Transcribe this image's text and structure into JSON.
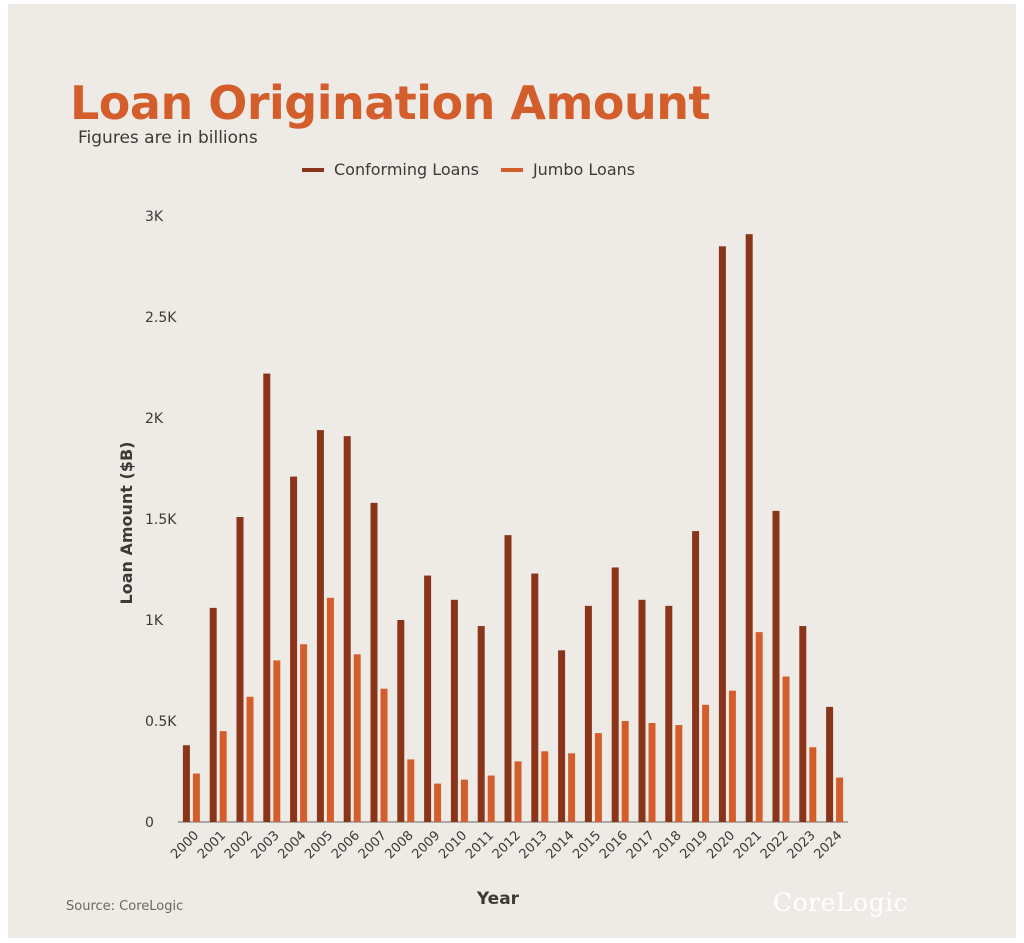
{
  "title": "Loan Origination Amount",
  "subtitle": "Figures are in billions",
  "source": "Source: CoreLogic",
  "brand": "CoreLogic",
  "colors": {
    "conforming": "#8a3419",
    "jumbo": "#d35e2c",
    "background": "#eeebe6",
    "text": "#3d3935",
    "axis": "#6d6760"
  },
  "chart_data": {
    "type": "bar",
    "xlabel": "Year",
    "ylabel": "Loan Amount ($B)",
    "ylim": [
      0,
      3000
    ],
    "yticks": [
      0,
      500,
      1000,
      1500,
      2000,
      2500,
      3000
    ],
    "ytick_labels": [
      "0",
      "0.5K",
      "1K",
      "1.5K",
      "2K",
      "2.5K",
      "3K"
    ],
    "grid": false,
    "legend_position": "top-center",
    "categories": [
      "2000",
      "2001",
      "2002",
      "2003",
      "2004",
      "2005",
      "2006",
      "2007",
      "2008",
      "2009",
      "2010",
      "2011",
      "2012",
      "2013",
      "2014",
      "2015",
      "2016",
      "2017",
      "2018",
      "2019",
      "2020",
      "2021",
      "2022",
      "2023",
      "2024"
    ],
    "series": [
      {
        "name": "Conforming Loans",
        "color": "#8a3419",
        "values": [
          380,
          1060,
          1510,
          2220,
          1710,
          1940,
          1910,
          1580,
          1000,
          1220,
          1100,
          970,
          1420,
          1230,
          850,
          1070,
          1260,
          1100,
          1070,
          1440,
          2850,
          2910,
          1540,
          970,
          570
        ]
      },
      {
        "name": "Jumbo Loans",
        "color": "#d35e2c",
        "values": [
          240,
          450,
          620,
          800,
          880,
          1110,
          830,
          660,
          310,
          190,
          210,
          230,
          300,
          350,
          340,
          440,
          500,
          490,
          480,
          580,
          650,
          940,
          720,
          370,
          220
        ]
      }
    ]
  }
}
